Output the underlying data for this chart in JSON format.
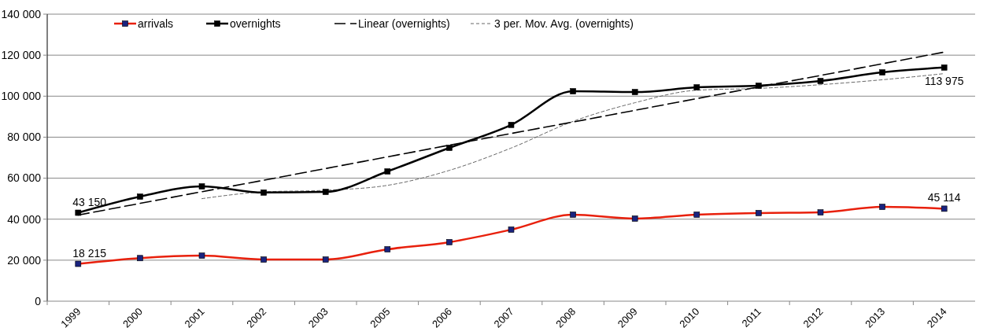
{
  "chart_data": {
    "type": "line",
    "categories": [
      "1999",
      "2000",
      "2001",
      "2002",
      "2003",
      "2005",
      "2006",
      "2007",
      "2008",
      "2009",
      "2010",
      "2011",
      "2012",
      "2013",
      "2014"
    ],
    "series": [
      {
        "name": "arrivals",
        "color": "#e8200c",
        "marker": "square",
        "values": [
          18215,
          21000,
          22200,
          20300,
          20300,
          25300,
          28800,
          34900,
          42200,
          40300,
          42200,
          43000,
          43300,
          46000,
          45114
        ],
        "value_labels": [
          "18 215",
          null,
          null,
          null,
          null,
          null,
          null,
          null,
          null,
          null,
          null,
          null,
          null,
          null,
          "45 114"
        ]
      },
      {
        "name": "overnights",
        "color": "#000000",
        "marker": "square",
        "values": [
          43150,
          51000,
          56000,
          53000,
          53300,
          63300,
          74800,
          86000,
          102400,
          102000,
          104300,
          105100,
          107400,
          111600,
          113975
        ],
        "value_labels": [
          "43 150",
          null,
          null,
          null,
          null,
          null,
          null,
          null,
          null,
          null,
          null,
          null,
          null,
          null,
          "113 975"
        ]
      },
      {
        "name": "Linear (overnights)",
        "color": "#000000",
        "line_style": "dashed",
        "marker": "none",
        "values": [
          42000,
          47700,
          53400,
          59000,
          64700,
          70400,
          76100,
          81800,
          87400,
          93100,
          98800,
          104500,
          110100,
          115800,
          121500
        ]
      },
      {
        "name": "3 per. Mov. Avg. (overnights)",
        "color": "#555555",
        "line_style": "dotted",
        "marker": "none",
        "values": [
          null,
          null,
          50000,
          53300,
          54100,
          56500,
          63800,
          74700,
          87700,
          96800,
          102900,
          103800,
          105600,
          108000,
          111000
        ]
      }
    ],
    "ylim": [
      0,
      140000
    ],
    "yticks": [
      0,
      {
        "value": 20000,
        "label": "20 000"
      },
      {
        "value": 40000,
        "label": "40 000"
      },
      {
        "value": 60000,
        "label": "60 000"
      },
      {
        "value": 80000,
        "label": "80 000"
      },
      {
        "value": 100000,
        "label": "100 000"
      },
      {
        "value": 120000,
        "label": "120 000"
      },
      {
        "value": 140000,
        "label": "140 000"
      }
    ],
    "grid": "y",
    "legend": "top"
  }
}
